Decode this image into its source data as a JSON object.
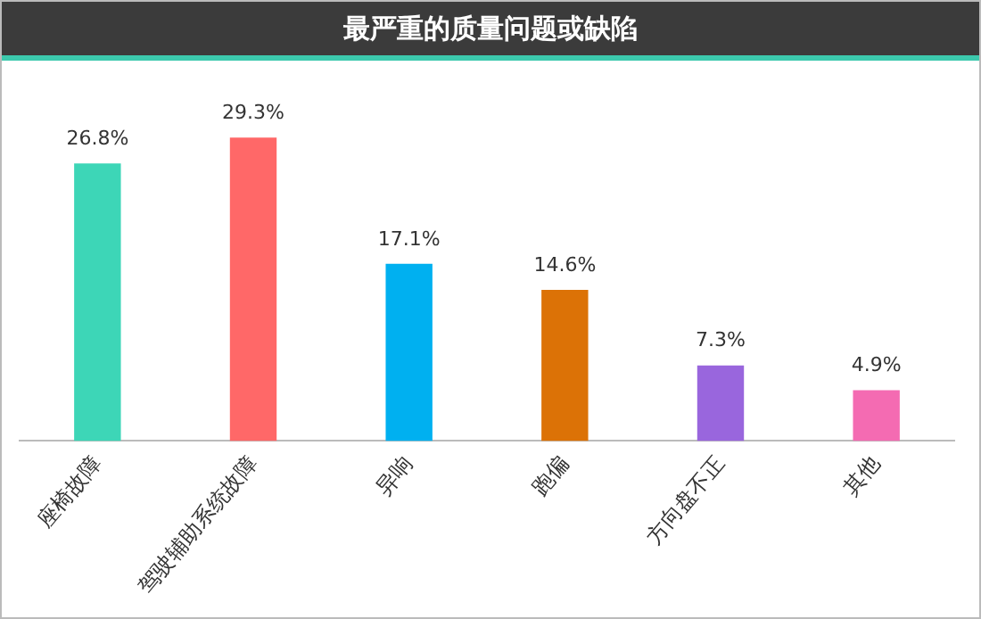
{
  "chart_data": {
    "type": "bar",
    "title": "最严重的质量问题或缺陷",
    "categories": [
      "座椅故障",
      "驾驶辅助系统故障",
      "异响",
      "跑偏",
      "方向盘不正",
      "其他"
    ],
    "values": [
      26.8,
      29.3,
      17.1,
      14.6,
      7.3,
      4.9
    ],
    "colors": [
      "#3dd6b7",
      "#ff6868",
      "#00b0f0",
      "#dc7206",
      "#9966dd",
      "#f46bb2"
    ],
    "value_labels": [
      "26.8%",
      "29.3%",
      "17.1%",
      "14.6%",
      "7.3%",
      "4.9%"
    ],
    "grid": false,
    "legend": false
  }
}
